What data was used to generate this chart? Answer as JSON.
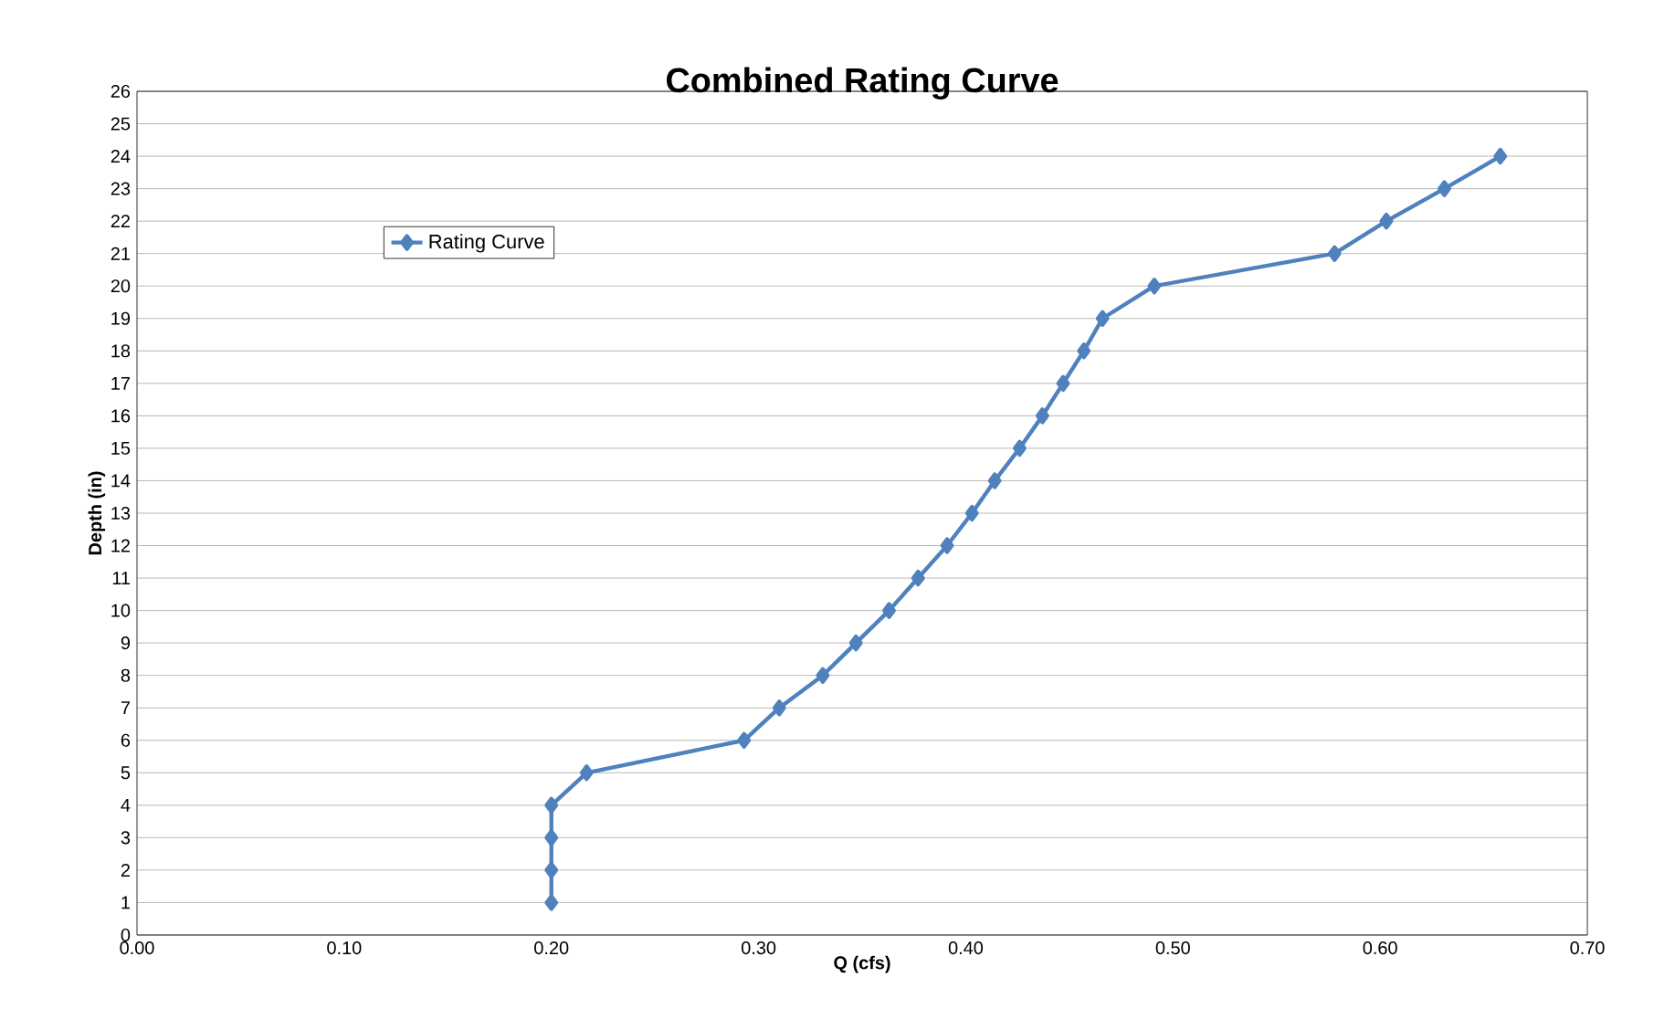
{
  "chart_data": {
    "type": "line",
    "title": "Combined Rating Curve",
    "xlabel": "Q (cfs)",
    "ylabel": "Depth (in)",
    "series": [
      {
        "name": "Rating Curve",
        "color": "#4f81bd",
        "x": [
          0.2,
          0.2,
          0.2,
          0.2,
          0.217,
          0.293,
          0.31,
          0.331,
          0.347,
          0.363,
          0.377,
          0.391,
          0.403,
          0.414,
          0.426,
          0.437,
          0.447,
          0.457,
          0.466,
          0.491,
          0.578,
          0.603,
          0.631,
          0.658
        ],
        "values": [
          1,
          2,
          3,
          4,
          5,
          6,
          7,
          8,
          9,
          10,
          11,
          12,
          13,
          14,
          15,
          16,
          17,
          18,
          19,
          20,
          21,
          22,
          23,
          24
        ]
      }
    ],
    "xlim": [
      0,
      0.7
    ],
    "xticks": [
      {
        "value": 0,
        "label": "0.00"
      },
      {
        "value": 0.1,
        "label": "0.10"
      },
      {
        "value": 0.2,
        "label": "0.20"
      },
      {
        "value": 0.3,
        "label": "0.30"
      },
      {
        "value": 0.4,
        "label": "0.40"
      },
      {
        "value": 0.5,
        "label": "0.50"
      },
      {
        "value": 0.6,
        "label": "0.60"
      },
      {
        "value": 0.7,
        "label": "0.70"
      }
    ],
    "ylim": [
      0,
      26
    ],
    "yticks": [
      0,
      1,
      2,
      3,
      4,
      5,
      6,
      7,
      8,
      9,
      10,
      11,
      12,
      13,
      14,
      15,
      16,
      17,
      18,
      19,
      20,
      21,
      22,
      23,
      24,
      25,
      26
    ],
    "grid": "y",
    "legend": "top left",
    "marker": "diamond",
    "line_style": "solid"
  }
}
